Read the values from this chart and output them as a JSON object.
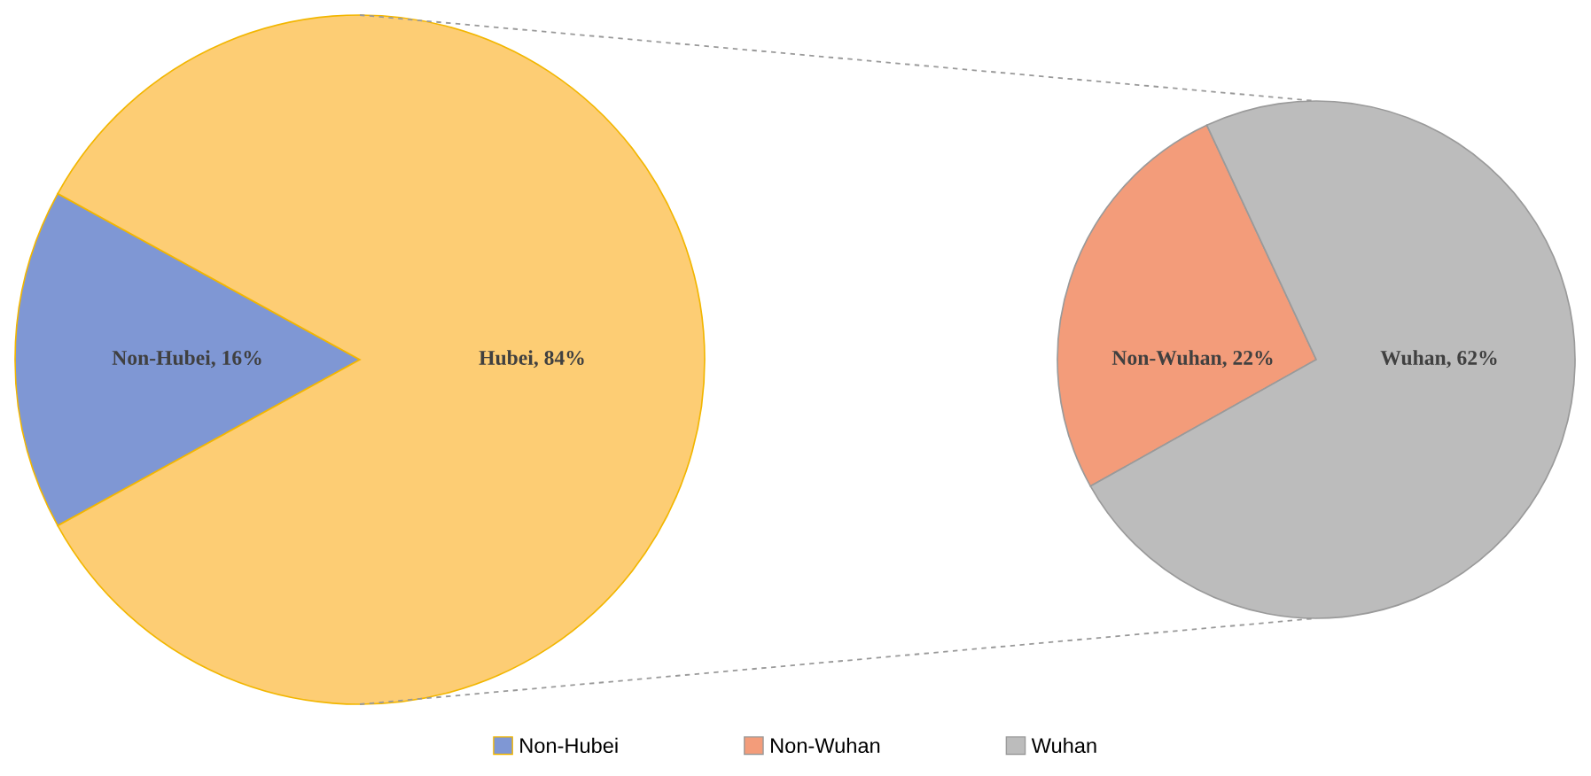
{
  "chart_data": [
    {
      "type": "pie",
      "categories": [
        "Non-Hubei",
        "Hubei"
      ],
      "values": [
        16,
        84
      ],
      "colors": [
        "#7f97d4",
        "#fdcd74"
      ],
      "value_labels": [
        ", 16%",
        ", 84%"
      ],
      "legend": "bottom"
    },
    {
      "type": "pie",
      "categories": [
        "Non-Wuhan",
        "Wuhan"
      ],
      "values": [
        22,
        62
      ],
      "colors": [
        "#f39c7a",
        "#bcbcbc"
      ],
      "value_labels": [
        ", 22%",
        ", 62%"
      ],
      "legend": "bottom"
    }
  ]
}
